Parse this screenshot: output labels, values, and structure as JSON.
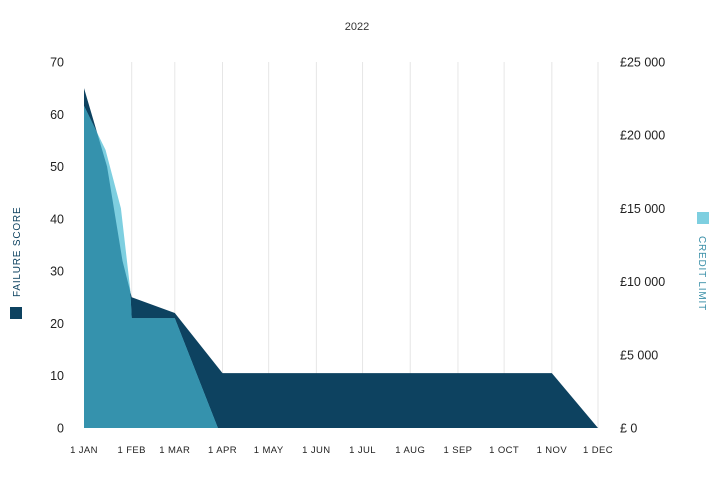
{
  "chart_data": {
    "type": "area",
    "title": "2022",
    "x_ticks": [
      "1 JAN",
      "1 FEB",
      "1 MAR",
      "1 APR",
      "1 MAY",
      "1 JUN",
      "1 JUL",
      "1 AUG",
      "1 SEP",
      "1 OCT",
      "1 NOV",
      "1 DEC"
    ],
    "x_range": [
      "2022-01-01",
      "2022-12-01"
    ],
    "grid": "vertical",
    "y_left": {
      "label": "FAILURE SCORE",
      "lim": [
        0,
        70
      ],
      "ticks": [
        "0",
        "10",
        "20",
        "30",
        "40",
        "50",
        "60",
        "70"
      ],
      "tick_values": [
        0,
        10,
        20,
        30,
        40,
        50,
        60,
        70
      ]
    },
    "y_right": {
      "label": "CREDIT LIMIT",
      "lim": [
        0,
        25000
      ],
      "ticks": [
        "£ 0",
        "£5 000",
        "£10 000",
        "£15 000",
        "£20 000",
        "£25 000"
      ],
      "tick_values": [
        0,
        5000,
        10000,
        15000,
        20000,
        25000
      ]
    },
    "series": [
      {
        "name": "FAILURE SCORE",
        "axis": "left",
        "color": "#0d4260",
        "points": [
          {
            "x": "2022-01-01",
            "y": 65
          },
          {
            "x": "2022-01-16",
            "y": 50
          },
          {
            "x": "2022-01-26",
            "y": 32
          },
          {
            "x": "2022-02-01",
            "y": 25
          },
          {
            "x": "2022-03-01",
            "y": 22
          },
          {
            "x": "2022-04-01",
            "y": 10.5
          },
          {
            "x": "2022-11-01",
            "y": 10.5
          },
          {
            "x": "2022-12-01",
            "y": 0
          }
        ]
      },
      {
        "name": "CREDIT LIMIT",
        "axis": "right",
        "color": "#7ecfe0",
        "points": [
          {
            "x": "2022-01-01",
            "y": 22000
          },
          {
            "x": "2022-01-15",
            "y": 19000
          },
          {
            "x": "2022-01-25",
            "y": 15000
          },
          {
            "x": "2022-01-31",
            "y": 9500
          },
          {
            "x": "2022-02-01",
            "y": 7500
          },
          {
            "x": "2022-03-01",
            "y": 7500
          },
          {
            "x": "2022-03-29",
            "y": 0
          },
          {
            "x": "2022-06-01",
            "y": 0
          }
        ]
      }
    ],
    "overlap_color": "#3592ad"
  }
}
